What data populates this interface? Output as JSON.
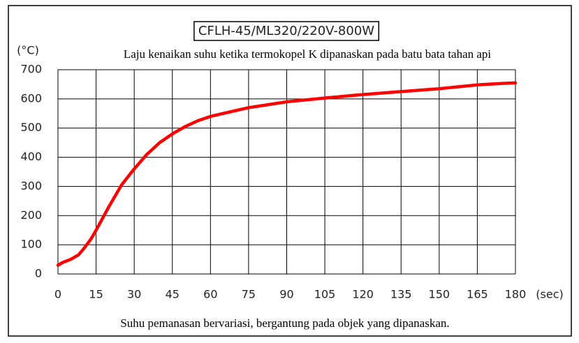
{
  "chart_data": {
    "type": "line",
    "title": "CFLH-45/ML320/220V-800W",
    "subtitle": "Laju kenaikan suhu ketika termokopel K dipanaskan pada batu bata tahan api",
    "y_label": "(°C)",
    "x_label": "(sec)",
    "note": "Suhu pemanasan bervariasi, bergantung pada objek yang dipanaskan.",
    "x": [
      0,
      2,
      5,
      8,
      10,
      13,
      15,
      20,
      25,
      30,
      35,
      40,
      45,
      50,
      55,
      60,
      70,
      75,
      90,
      105,
      120,
      135,
      150,
      165,
      175,
      180
    ],
    "values": [
      30,
      40,
      50,
      65,
      85,
      120,
      150,
      230,
      305,
      360,
      410,
      450,
      480,
      505,
      525,
      540,
      560,
      570,
      590,
      603,
      615,
      625,
      635,
      648,
      653,
      655
    ],
    "color": "#ff0000",
    "xlim": [
      0,
      180
    ],
    "xticks": [
      0,
      15,
      30,
      45,
      60,
      75,
      90,
      105,
      120,
      135,
      150,
      165,
      180
    ],
    "ylim": [
      0,
      700
    ],
    "yticks": [
      0,
      100,
      200,
      300,
      400,
      500,
      600,
      700
    ],
    "grid": true
  }
}
